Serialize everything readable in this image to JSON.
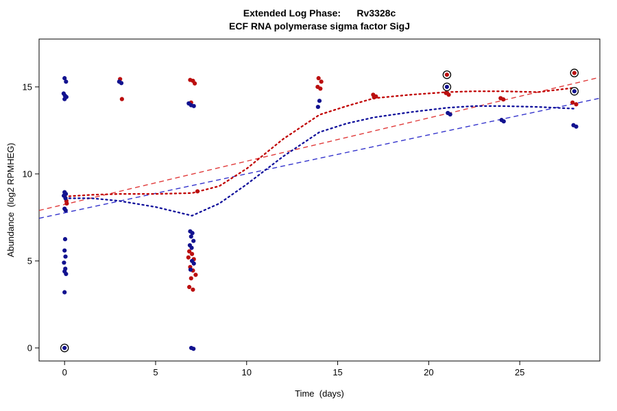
{
  "header": {
    "title": "Extended Log Phase:      Rv3328c",
    "subtitle": "ECF RNA polymerase sigma factor SigJ"
  },
  "axes": {
    "x_label": "Time  (days)",
    "y_label": "Abundance  (log2 RPMHEG)"
  },
  "chart_data": {
    "type": "scatter",
    "title": "Extended Log Phase: Rv3328c",
    "subtitle": "ECF RNA polymerase sigma factor SigJ",
    "xlabel": "Time (days)",
    "ylabel": "Abundance (log2 RPMHEG)",
    "xlim": [
      -1.4,
      29.4
    ],
    "ylim": [
      -0.75,
      17.75
    ],
    "xticks": [
      0,
      5,
      10,
      15,
      20,
      25
    ],
    "yticks": [
      0,
      5,
      10,
      15
    ],
    "grid": false,
    "legend_position": "none",
    "series": [
      {
        "name": "red-replicates",
        "color": "#bb0f0f",
        "points": [
          [
            0.1,
            8.45
          ],
          [
            0.12,
            8.3
          ],
          [
            3.05,
            15.45
          ],
          [
            3.15,
            14.3
          ],
          [
            6.9,
            15.4
          ],
          [
            7.05,
            15.35
          ],
          [
            7.15,
            15.2
          ],
          [
            6.95,
            14.1
          ],
          [
            7.3,
            9.0
          ],
          [
            6.85,
            5.55
          ],
          [
            7.0,
            5.4
          ],
          [
            6.8,
            5.2
          ],
          [
            7.1,
            5.1
          ],
          [
            6.9,
            4.65
          ],
          [
            7.05,
            4.45
          ],
          [
            7.2,
            4.2
          ],
          [
            6.95,
            4.0
          ],
          [
            6.85,
            3.5
          ],
          [
            7.05,
            3.35
          ],
          [
            13.95,
            15.5
          ],
          [
            14.1,
            15.3
          ],
          [
            13.9,
            15.0
          ],
          [
            14.05,
            14.9
          ],
          [
            16.95,
            14.55
          ],
          [
            17.1,
            14.45
          ],
          [
            17.0,
            14.4
          ],
          [
            21.0,
            15.7
          ],
          [
            20.95,
            14.65
          ],
          [
            21.1,
            14.55
          ],
          [
            23.95,
            14.35
          ],
          [
            24.1,
            14.28
          ],
          [
            28.0,
            15.8
          ],
          [
            27.9,
            14.1
          ],
          [
            28.1,
            14.0
          ]
        ]
      },
      {
        "name": "blue-replicates",
        "color": "#12128f",
        "points": [
          [
            0.0,
            15.5
          ],
          [
            0.08,
            15.3
          ],
          [
            -0.05,
            14.62
          ],
          [
            0.02,
            14.5
          ],
          [
            0.1,
            14.42
          ],
          [
            0.0,
            14.3
          ],
          [
            0.0,
            8.95
          ],
          [
            0.07,
            8.85
          ],
          [
            -0.04,
            8.75
          ],
          [
            0.05,
            8.6
          ],
          [
            0.0,
            8.0
          ],
          [
            0.06,
            7.9
          ],
          [
            0.03,
            6.25
          ],
          [
            0.0,
            5.6
          ],
          [
            0.05,
            5.25
          ],
          [
            -0.03,
            4.9
          ],
          [
            0.04,
            4.55
          ],
          [
            0.0,
            4.4
          ],
          [
            0.08,
            4.25
          ],
          [
            0.0,
            3.2
          ],
          [
            0.0,
            0.0
          ],
          [
            3.0,
            15.3
          ],
          [
            3.12,
            15.22
          ],
          [
            6.82,
            14.05
          ],
          [
            6.95,
            13.95
          ],
          [
            7.1,
            13.9
          ],
          [
            6.9,
            6.7
          ],
          [
            7.02,
            6.6
          ],
          [
            6.95,
            6.4
          ],
          [
            7.08,
            6.15
          ],
          [
            6.88,
            5.9
          ],
          [
            6.98,
            5.75
          ],
          [
            7.0,
            5.0
          ],
          [
            7.1,
            4.85
          ],
          [
            6.92,
            4.5
          ],
          [
            6.96,
            0.0
          ],
          [
            7.08,
            -0.05
          ],
          [
            14.0,
            14.2
          ],
          [
            13.92,
            13.85
          ],
          [
            21.0,
            15.0
          ],
          [
            21.05,
            13.5
          ],
          [
            21.18,
            13.42
          ],
          [
            24.0,
            13.1
          ],
          [
            24.12,
            13.02
          ],
          [
            28.0,
            14.75
          ],
          [
            27.95,
            12.8
          ],
          [
            28.1,
            12.72
          ]
        ]
      }
    ],
    "circled_points": [
      [
        0.0,
        0.0
      ],
      [
        21.0,
        15.7
      ],
      [
        21.0,
        15.0
      ],
      [
        28.0,
        15.8
      ],
      [
        28.0,
        14.75
      ]
    ],
    "lines": [
      {
        "name": "red-linear-trend",
        "style": "dashed",
        "color": "#e03a3a",
        "width": 1.4,
        "points": [
          [
            -1.4,
            7.9
          ],
          [
            29.4,
            15.55
          ]
        ]
      },
      {
        "name": "blue-linear-trend",
        "style": "dashed",
        "color": "#3333cc",
        "width": 1.4,
        "points": [
          [
            -1.4,
            7.45
          ],
          [
            29.4,
            14.35
          ]
        ]
      },
      {
        "name": "red-smooth-trend",
        "style": "dotted",
        "color": "#c00000",
        "width": 2.3,
        "points": [
          [
            0,
            8.7
          ],
          [
            1.5,
            8.8
          ],
          [
            3,
            8.85
          ],
          [
            5,
            8.85
          ],
          [
            7,
            8.9
          ],
          [
            8.5,
            9.3
          ],
          [
            10,
            10.3
          ],
          [
            12,
            12.0
          ],
          [
            14,
            13.4
          ],
          [
            15.5,
            13.9
          ],
          [
            17,
            14.35
          ],
          [
            19,
            14.55
          ],
          [
            21,
            14.7
          ],
          [
            22.5,
            14.75
          ],
          [
            24,
            14.75
          ],
          [
            26,
            14.7
          ],
          [
            28,
            14.95
          ]
        ]
      },
      {
        "name": "blue-smooth-trend",
        "style": "dotted",
        "color": "#10109b",
        "width": 2.3,
        "points": [
          [
            0,
            8.6
          ],
          [
            1.5,
            8.6
          ],
          [
            3,
            8.45
          ],
          [
            5,
            8.1
          ],
          [
            7,
            7.6
          ],
          [
            8.5,
            8.3
          ],
          [
            10,
            9.4
          ],
          [
            12,
            11.0
          ],
          [
            14,
            12.4
          ],
          [
            15.5,
            12.9
          ],
          [
            17,
            13.25
          ],
          [
            19,
            13.55
          ],
          [
            21,
            13.8
          ],
          [
            22.5,
            13.9
          ],
          [
            24,
            13.9
          ],
          [
            26,
            13.85
          ],
          [
            28,
            13.75
          ]
        ]
      }
    ]
  }
}
